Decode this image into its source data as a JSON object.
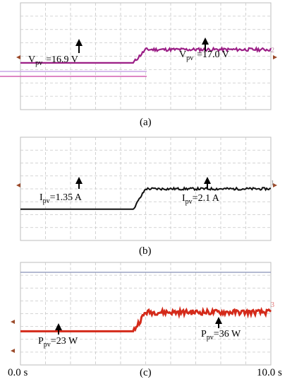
{
  "chart_data": [
    {
      "type": "line",
      "panel": "(a)",
      "series": [
        {
          "channel": "2",
          "color": "#9b1f86",
          "values": [
            16.9,
            16.9,
            16.9,
            16.9,
            16.9,
            16.9,
            16.9,
            16.9,
            16.9,
            16.9,
            17.0,
            17.0,
            17.0,
            17.0,
            17.0,
            17.0,
            17.0,
            17.0,
            17.0,
            17.0,
            17.0
          ]
        }
      ],
      "annotations": [
        {
          "quantity": "V",
          "sub": "pv",
          "text": "=16.9 V"
        },
        {
          "quantity": "V",
          "sub": "pv",
          "text": "=17.0 V"
        }
      ],
      "grid": true
    },
    {
      "type": "line",
      "panel": "(b)",
      "series": [
        {
          "channel": "1",
          "color": "#111111",
          "values": [
            1.35,
            1.35,
            1.35,
            1.35,
            1.35,
            1.35,
            1.35,
            1.35,
            1.35,
            1.35,
            2.1,
            2.1,
            2.1,
            2.1,
            2.1,
            2.1,
            2.1,
            2.1,
            2.1,
            2.1,
            2.1
          ]
        }
      ],
      "annotations": [
        {
          "quantity": "I",
          "sub": "pv",
          "text": "=1.35 A"
        },
        {
          "quantity": "I",
          "sub": "pv",
          "text": "=2.1 A"
        }
      ],
      "grid": true
    },
    {
      "type": "line",
      "panel": "(c)",
      "series": [
        {
          "channel": "3",
          "color": "#d42a1a",
          "values": [
            23,
            23,
            23,
            23,
            23,
            23,
            23,
            23,
            23,
            23,
            36,
            36,
            36,
            36,
            36,
            36,
            36,
            36,
            36,
            36,
            36
          ]
        }
      ],
      "annotations": [
        {
          "quantity": "P",
          "sub": "pv",
          "text": "=23 W"
        },
        {
          "quantity": "P",
          "sub": "pv",
          "text": "=36 W"
        }
      ],
      "xlim": [
        0,
        10
      ],
      "x_tick_labels": [
        "0.0 s",
        "10.0 s"
      ],
      "grid": true
    }
  ]
}
